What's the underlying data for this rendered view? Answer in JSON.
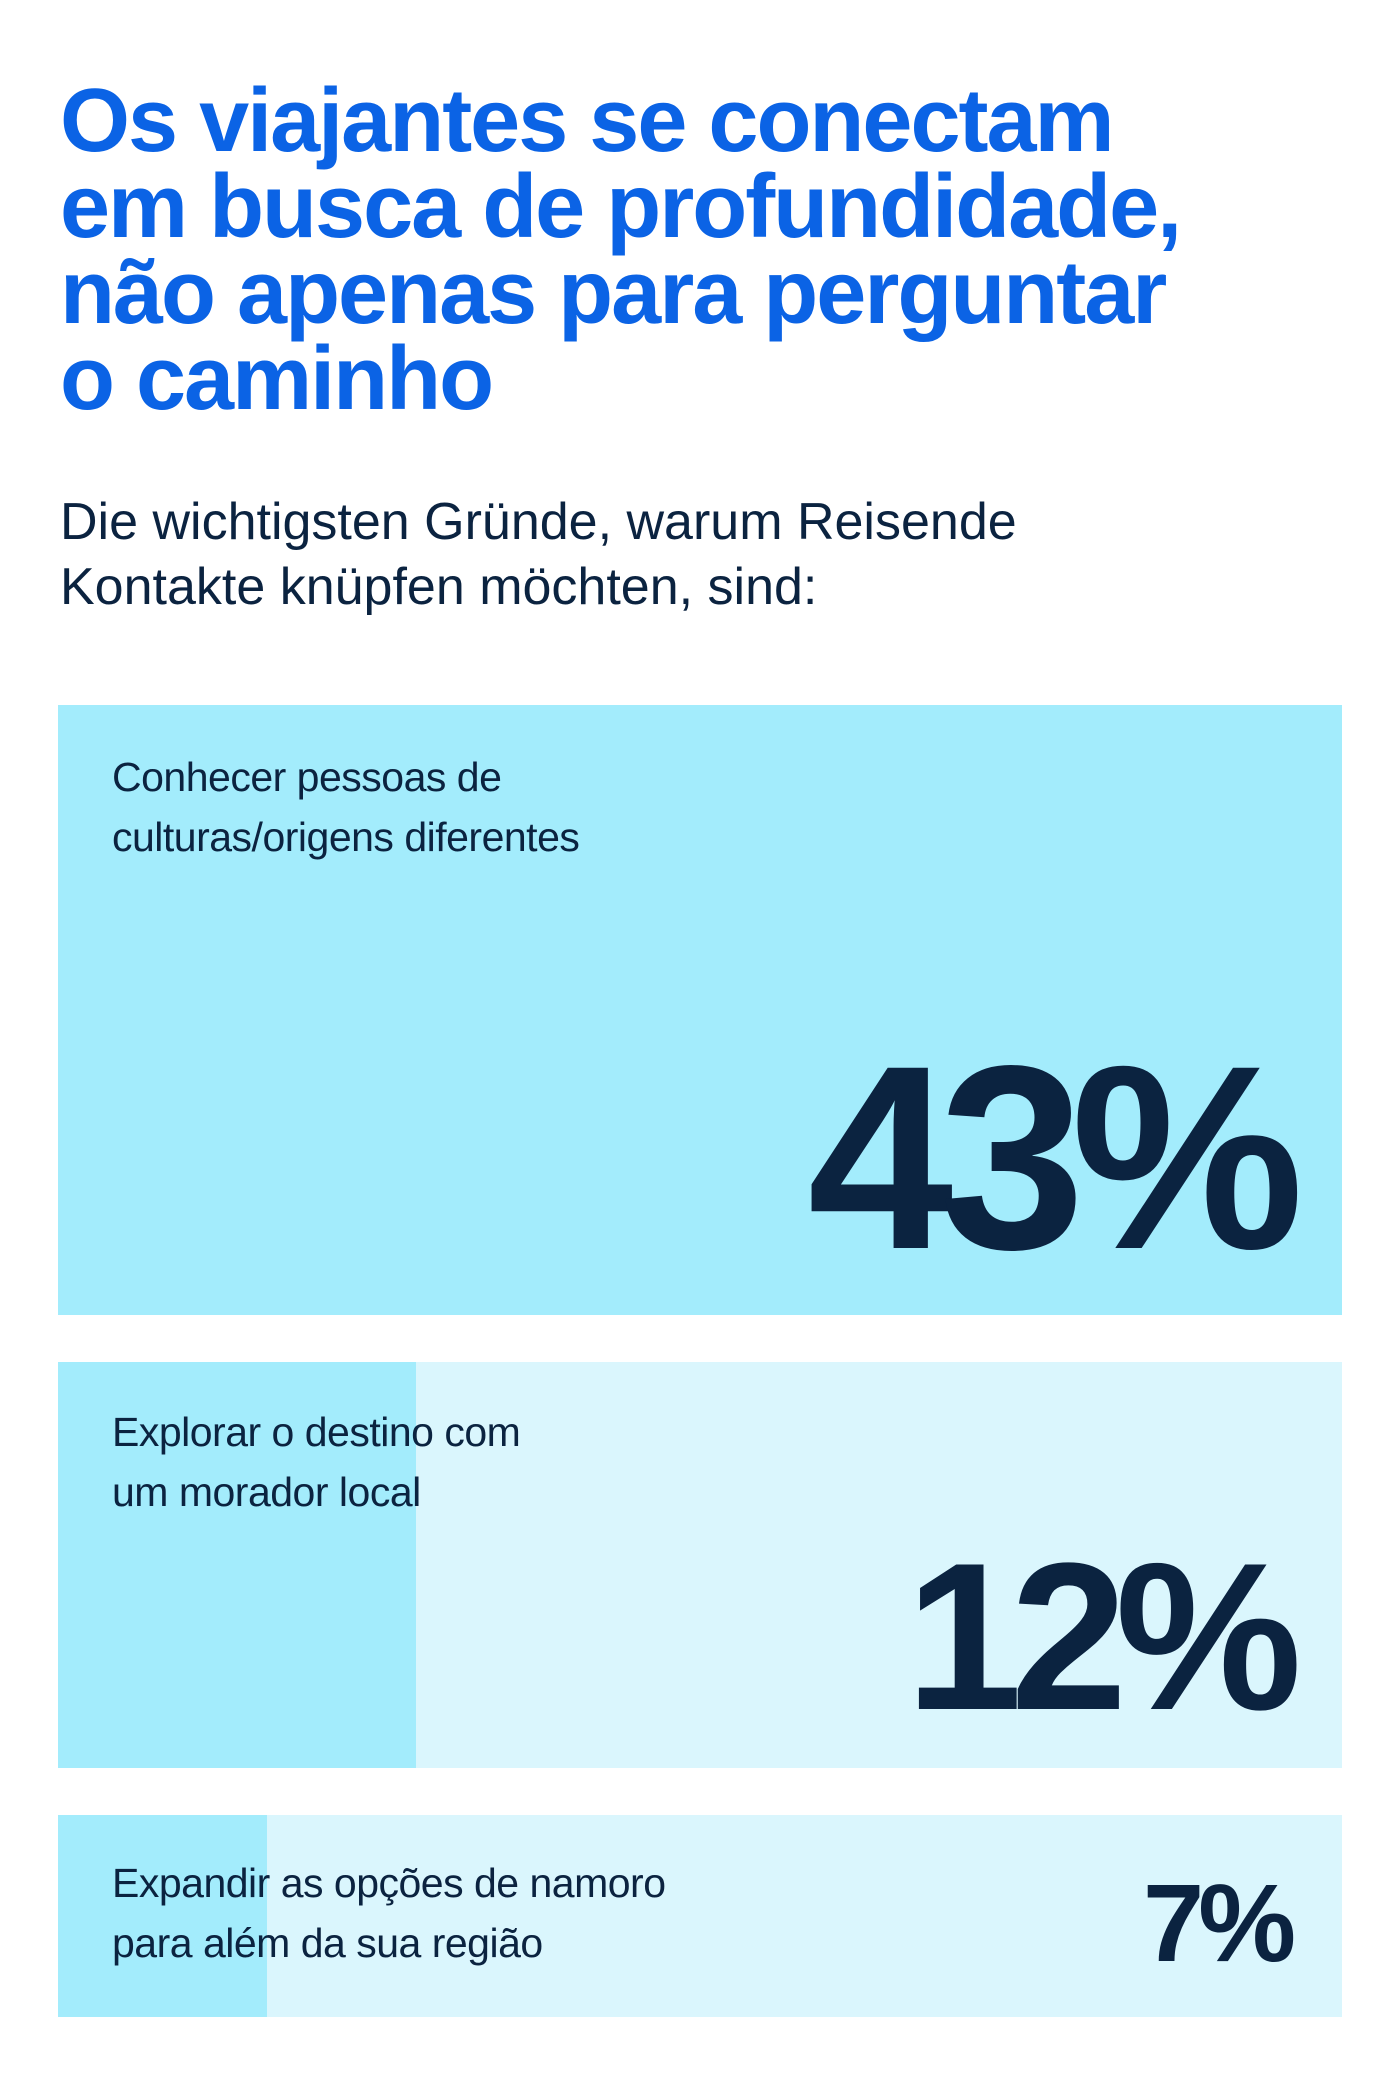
{
  "headline": {
    "lines": [
      "Os viajantes se conectam",
      "em busca de profundidade,",
      "não apenas para perguntar",
      "o caminho"
    ]
  },
  "subtitle": {
    "lines": [
      "Die wichtigsten Gründe, warum Reisende",
      "Kontakte knüpfen möchten, sind:"
    ]
  },
  "colors": {
    "headline": "#0b63e5",
    "text": "#0b2340",
    "bar_fill": "#a3ecfc",
    "bar_track": "#daf6fd"
  },
  "chart_data": {
    "type": "bar",
    "orientation": "horizontal",
    "unit": "%",
    "categories": [
      "Conhecer pessoas de culturas/origens diferentes",
      "Explorar o destino com um morador local",
      "Expandir as opções de namoro para além da sua região"
    ],
    "category_lines": [
      [
        "Conhecer pessoas de",
        "culturas/origens diferentes"
      ],
      [
        "Explorar o destino com",
        "um morador local"
      ],
      [
        "Expandir as opções de namoro",
        "para além da sua região"
      ]
    ],
    "values": [
      43,
      12,
      7
    ],
    "value_labels": [
      "43%",
      "12%",
      "7%"
    ],
    "xlim": [
      0,
      43
    ]
  }
}
